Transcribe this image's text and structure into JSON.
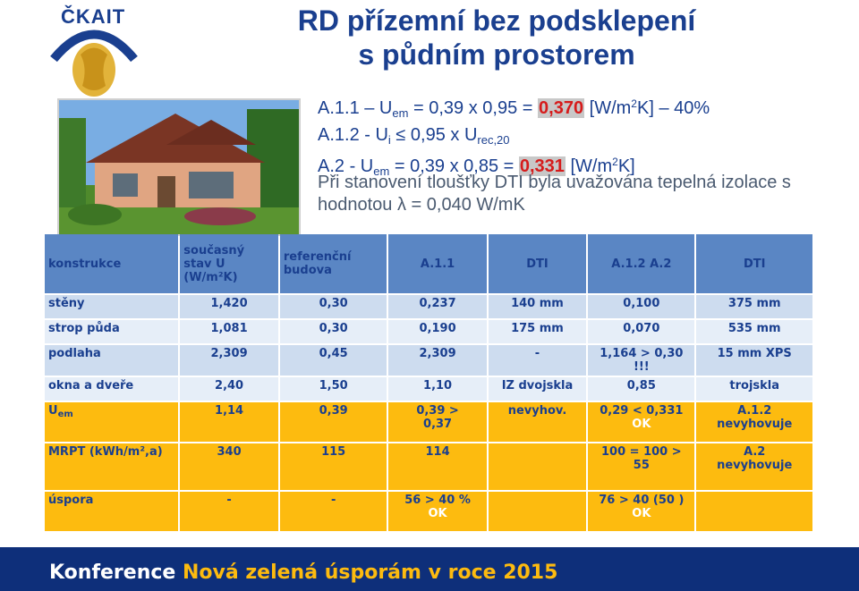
{
  "logo": {
    "text": "ČKAIT"
  },
  "title": {
    "line1": "RD přízemní bez podsklepení",
    "line2": "s půdním prostorem"
  },
  "formulas": {
    "l1": {
      "a": "A.1.1  – U",
      "sub": "em",
      "b": " = 0,39 x 0,95 = ",
      "hl": "0,370",
      "c": " [W/m",
      "sup": "2",
      "d": "K]  –  40%"
    },
    "l2": {
      "a": "A.1.2 -  U",
      "sub1": "i",
      "b": "  ≤  0,95 x U",
      "sub2": "rec,20"
    },
    "l3": {
      "a": "A.2   -  U",
      "sub": "em",
      "b": " = 0,39 x 0,85 = ",
      "hl": "0,331",
      "c": " [W/m",
      "sup": "2",
      "d": "K]"
    }
  },
  "note": "Při stanovení tloušťky DTI byla uvažována tepelná izolace s hodnotou λ = 0,040 W/mK",
  "table": {
    "headers": [
      "konstrukce",
      "současný stav U (W/m²K)",
      "referenční budova",
      "A.1.1",
      "DTI",
      "A.1.2 A.2",
      "DTI"
    ],
    "rows": [
      [
        "stěny",
        "1,420",
        "0,30",
        "0,237",
        "140 mm",
        "0,100",
        "375 mm"
      ],
      [
        "strop půda",
        "1,081",
        "0,30",
        "0,190",
        "175 mm",
        "0,070",
        "535 mm"
      ],
      [
        "podlaha",
        "2,309",
        "0,45",
        "2,309",
        "-",
        "1,164 > 0,30 !!!",
        "15 mm XPS"
      ],
      [
        "okna a dveře",
        "2,40",
        "1,50",
        "1,10",
        "IZ dvojskla",
        "0,85",
        "trojskla"
      ]
    ],
    "yellow": {
      "uem": {
        "label": "U",
        "sub": "em",
        "v1": "1,14",
        "v2": "0,39",
        "v3a": "0,39 >",
        "v3b": "0,37",
        "v4": "nevyhov.",
        "v5a": "0,29 < 0,331",
        "v5b": "OK",
        "v6a": "A.1.2",
        "v6b": "nevyhovuje"
      },
      "mrpt": {
        "label": "MRPT (kWh/m²,a)",
        "v1": "340",
        "v2": "115",
        "v3": "114",
        "v4": "",
        "v5a": "100 = 100 >",
        "v5b": "55",
        "v6a": "A.2",
        "v6b": "nevyhovuje"
      },
      "uspora": {
        "label": "úspora",
        "v1": "-",
        "v2": "-",
        "v3a": "56 > 40 %",
        "v3b": "OK",
        "v4": "",
        "v5a": "76 > 40 (50 )",
        "v5b": "OK",
        "v6": ""
      }
    }
  },
  "footer": {
    "a": "Konference ",
    "b": "Nová zelená úsporám v roce 2015"
  },
  "colors": {
    "navy": "#1a3f8f",
    "header": "#5a86c4",
    "yellow": "#fdbb0f",
    "red": "#d61b1b",
    "footer": "#0e2f7a"
  }
}
